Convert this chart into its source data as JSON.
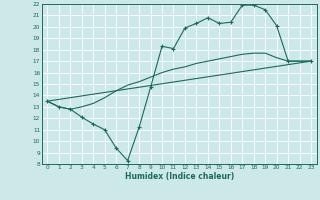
{
  "xlabel": "Humidex (Indice chaleur)",
  "xlim": [
    -0.5,
    23.5
  ],
  "ylim": [
    8,
    22
  ],
  "xticks": [
    0,
    1,
    2,
    3,
    4,
    5,
    6,
    7,
    8,
    9,
    10,
    11,
    12,
    13,
    14,
    15,
    16,
    17,
    18,
    19,
    20,
    21,
    22,
    23
  ],
  "yticks": [
    8,
    9,
    10,
    11,
    12,
    13,
    14,
    15,
    16,
    17,
    18,
    19,
    20,
    21,
    22
  ],
  "bg_color": "#cce8e8",
  "line_color": "#1a6b5a",
  "grid_color": "#ffffff",
  "line1_x": [
    0,
    1,
    2,
    3,
    4,
    5,
    6,
    7,
    8,
    9,
    10,
    11,
    12,
    13,
    14,
    15,
    16,
    17,
    18,
    19,
    20,
    21,
    23
  ],
  "line1_y": [
    13.5,
    13.0,
    12.8,
    12.1,
    11.5,
    11.0,
    9.4,
    8.3,
    11.2,
    14.7,
    18.3,
    18.1,
    19.9,
    20.3,
    20.8,
    20.3,
    20.4,
    21.9,
    21.9,
    21.5,
    20.1,
    17.0,
    17.0
  ],
  "line2_x": [
    0,
    23
  ],
  "line2_y": [
    13.5,
    17.0
  ],
  "line3_x": [
    0,
    1,
    2,
    3,
    4,
    5,
    6,
    7,
    8,
    9,
    10,
    11,
    12,
    13,
    14,
    15,
    16,
    17,
    18,
    19,
    20,
    21,
    23
  ],
  "line3_y": [
    13.5,
    13.0,
    12.8,
    13.0,
    13.3,
    13.8,
    14.4,
    14.9,
    15.2,
    15.6,
    16.0,
    16.3,
    16.5,
    16.8,
    17.0,
    17.2,
    17.4,
    17.6,
    17.7,
    17.7,
    17.3,
    17.0,
    17.0
  ]
}
